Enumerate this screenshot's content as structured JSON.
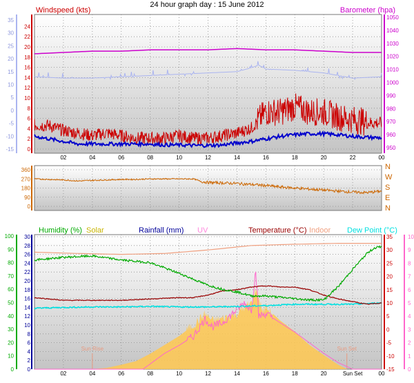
{
  "title": "24 hour graph day : 15 June 2012",
  "x_ticks": [
    "02",
    "04",
    "06",
    "08",
    "10",
    "12",
    "14",
    "16",
    "18",
    "20",
    "22",
    "00"
  ],
  "bottom_x_ticks": [
    "02",
    "04",
    "06",
    "08",
    "10",
    "12",
    "14",
    "16",
    "18",
    "20",
    "Sun Set",
    "00"
  ],
  "colors": {
    "wind": "#cc0000",
    "wind_avg": "#0000cc",
    "barometer": "#cc00cc",
    "barometer_raw": "#aab4f0",
    "direction": "#cc6600",
    "humidity": "#00aa00",
    "solar": "#ffc850",
    "rainfall": "#000099",
    "uv": "#ff66cc",
    "temperature": "#990000",
    "indoor": "#f0a080",
    "dew_point": "#00e0e0"
  },
  "chart_data": [
    {
      "type": "line",
      "panel": "wind-barometer",
      "y_left": {
        "label": "Windspeed (kts)",
        "range": [
          0,
          25
        ],
        "ticks": [
          0,
          2,
          4,
          6,
          8,
          10,
          12,
          14,
          16,
          18,
          20,
          22,
          24
        ]
      },
      "y_outer": {
        "range": [
          -15,
          35
        ],
        "ticks": [
          -15,
          -10,
          -5,
          0,
          5,
          10,
          15,
          20,
          25,
          30,
          35
        ]
      },
      "y_right": {
        "label": "Barometer (hpa)",
        "range": [
          945,
          1050
        ],
        "ticks": [
          950,
          960,
          970,
          980,
          990,
          1000,
          1010,
          1020,
          1030,
          1040,
          1050
        ]
      },
      "series": [
        {
          "key": "gust",
          "x": [
            0,
            1,
            2,
            3,
            4,
            5,
            6,
            7,
            8,
            9,
            10,
            11,
            12,
            13,
            14,
            15,
            16,
            17,
            18,
            19,
            20,
            21,
            22,
            23,
            24
          ],
          "values": [
            4.5,
            4.5,
            3.5,
            3,
            2.5,
            3,
            2.5,
            2,
            2,
            2,
            2.5,
            2,
            2,
            2.5,
            3,
            4,
            7,
            7,
            8,
            7,
            7,
            6,
            5.5,
            5,
            5
          ]
        },
        {
          "key": "average",
          "x": [
            0,
            1,
            2,
            3,
            4,
            5,
            6,
            7,
            8,
            9,
            10,
            11,
            12,
            13,
            14,
            15,
            16,
            17,
            18,
            19,
            20,
            21,
            22,
            23,
            24
          ],
          "values": [
            2.5,
            2,
            1.5,
            1,
            1,
            1,
            1,
            1,
            1,
            0.8,
            0.8,
            0.7,
            0.7,
            0.8,
            1.2,
            1.5,
            2,
            2.5,
            2.8,
            3,
            3,
            2.8,
            2.5,
            2.3,
            2.2
          ]
        },
        {
          "key": "barometer",
          "x": [
            0,
            2,
            4,
            6,
            8,
            10,
            12,
            14,
            16,
            18,
            20,
            22,
            24
          ],
          "values": [
            1022,
            1023,
            1024,
            1024,
            1025,
            1025,
            1025,
            1026,
            1025,
            1025,
            1024,
            1023,
            1023
          ]
        },
        {
          "key": "outer",
          "x": [
            0,
            2,
            4,
            6,
            8,
            10,
            12,
            14,
            15,
            15.5,
            16,
            18,
            20,
            22,
            24
          ],
          "values": [
            13,
            12.5,
            12.5,
            13,
            13.5,
            14,
            14.5,
            15,
            16.5,
            17.5,
            16,
            15.5,
            14.5,
            12.5,
            13
          ]
        }
      ]
    },
    {
      "type": "scatter",
      "panel": "wind-direction",
      "y_left": {
        "range": [
          0,
          360
        ],
        "ticks": [
          0,
          90,
          180,
          270,
          360
        ]
      },
      "y_right_compass": [
        "N",
        "W",
        "S",
        "E",
        "N"
      ],
      "series": [
        {
          "key": "direction",
          "x": [
            0,
            1,
            2,
            3,
            4,
            5,
            6,
            7,
            8,
            9,
            10,
            11,
            11.5,
            12,
            13,
            14,
            15,
            16,
            17,
            18,
            19,
            20,
            21,
            22,
            23,
            24
          ],
          "values": [
            270,
            265,
            260,
            250,
            255,
            260,
            265,
            265,
            270,
            270,
            270,
            270,
            245,
            235,
            230,
            225,
            215,
            205,
            190,
            180,
            170,
            160,
            150,
            140,
            135,
            150
          ]
        }
      ]
    },
    {
      "type": "line",
      "panel": "climate",
      "y_humidity": {
        "label": "Humidity (%)",
        "range": [
          0,
          100
        ],
        "ticks": [
          0,
          10,
          20,
          30,
          40,
          50,
          60,
          70,
          80,
          90,
          100
        ]
      },
      "y_rain": {
        "range": [
          0,
          30
        ],
        "ticks": [
          0,
          2,
          4,
          6,
          8,
          10,
          12,
          14,
          16,
          18,
          20,
          22,
          24,
          26,
          28,
          30
        ]
      },
      "y_temperature": {
        "label": "Temperature (°C)",
        "range": [
          -15,
          35
        ],
        "ticks": [
          -15,
          -10,
          -5,
          0,
          5,
          10,
          15,
          20,
          25,
          30,
          35
        ]
      },
      "y_uv": {
        "range": [
          0,
          10
        ],
        "ticks": [
          0,
          1,
          2,
          3,
          4,
          5,
          6,
          7,
          8,
          9,
          10
        ]
      },
      "legend": [
        "Humidity (%)",
        "Solar",
        "Rainfall (mm)",
        "UV",
        "Temperature (°C)",
        "Indoor",
        "Dew Point (°C)"
      ],
      "annotations": [
        {
          "text": "Sun Rise",
          "x": 4.0
        },
        {
          "text": "Sun Set",
          "x": 21.6
        }
      ],
      "series": [
        {
          "key": "humidity",
          "x": [
            0,
            2,
            4,
            6,
            8,
            10,
            12,
            13,
            14,
            15,
            16,
            17,
            18,
            19,
            20,
            21,
            22,
            23,
            23.5,
            24
          ],
          "values": [
            82,
            84,
            85,
            82,
            80,
            72,
            63,
            60,
            58,
            55,
            55,
            54,
            53,
            52,
            52,
            62,
            75,
            87,
            91,
            92
          ]
        },
        {
          "key": "indoor",
          "x": [
            0,
            3,
            6,
            9,
            12,
            15,
            18,
            21,
            24
          ],
          "values": [
            26.5,
            26.2,
            26.0,
            26.2,
            27,
            28,
            28.3,
            28.5,
            28.5
          ]
        },
        {
          "key": "temperature",
          "x": [
            0,
            2,
            4,
            6,
            8,
            10,
            11,
            12,
            13,
            14,
            15,
            16,
            17,
            18,
            19,
            20,
            21,
            22,
            23,
            24
          ],
          "values": [
            12,
            11,
            11,
            11,
            11.5,
            12,
            12,
            13,
            14.5,
            15,
            16,
            16.5,
            16,
            16,
            15,
            13,
            11.5,
            10.5,
            9.5,
            10
          ]
        },
        {
          "key": "dew_point",
          "x": [
            0,
            2,
            4,
            6,
            8,
            10,
            12,
            14,
            16,
            18,
            20,
            22,
            24
          ],
          "values": [
            8,
            8.3,
            8.5,
            8.5,
            8.7,
            8.5,
            8.5,
            8.7,
            9,
            9.5,
            9.5,
            9.5,
            10
          ]
        },
        {
          "key": "uv",
          "x": [
            0,
            7.5,
            8,
            9,
            10,
            11,
            11.8,
            12.3,
            13,
            14,
            14.5,
            15,
            15.3,
            15.5,
            16,
            17,
            18,
            19,
            20,
            21,
            22,
            23,
            24
          ],
          "values": [
            0,
            0,
            0.4,
            1.2,
            1.8,
            2.5,
            3.8,
            3.2,
            3.5,
            4.5,
            5,
            4.5,
            7.5,
            4,
            4.2,
            3.5,
            2.8,
            2,
            1.2,
            0.5,
            0,
            0,
            0
          ]
        },
        {
          "key": "solar",
          "x": [
            0,
            4,
            5,
            6,
            7,
            8,
            9,
            10,
            11,
            11.8,
            12.3,
            13,
            14,
            14.5,
            15,
            15.3,
            15.8,
            16,
            17,
            18,
            19,
            20,
            21,
            21.6,
            24
          ],
          "values": [
            0,
            0,
            0.3,
            1,
            1.8,
            3.5,
            5.5,
            7.5,
            10,
            12.5,
            11,
            11.5,
            12.5,
            14,
            15,
            18,
            13,
            14,
            11,
            8.5,
            5.5,
            3.2,
            1,
            0,
            0
          ]
        }
      ]
    }
  ]
}
